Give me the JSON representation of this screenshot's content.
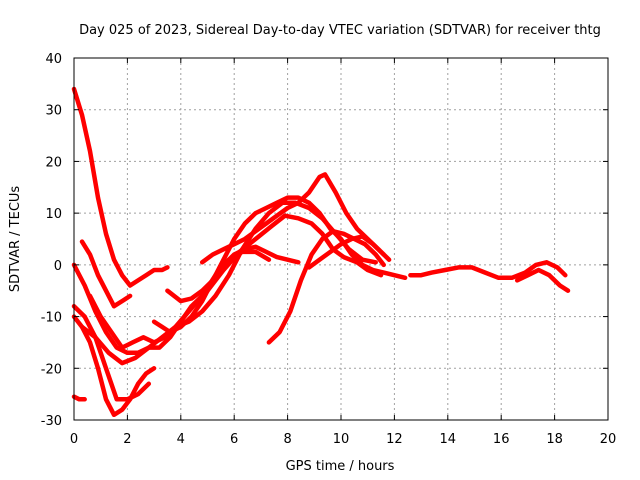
{
  "chart_data": {
    "type": "line",
    "title": "Day 025 of 2023, Sidereal Day-to-day VTEC variation (SDTVAR) for receiver thtg",
    "xlabel": "GPS time / hours",
    "ylabel": "SDTVAR / TECUs",
    "xlim": [
      0,
      20
    ],
    "ylim": [
      -30,
      40
    ],
    "xticks": [
      0,
      2,
      4,
      6,
      8,
      10,
      12,
      14,
      16,
      18,
      20
    ],
    "yticks": [
      -30,
      -20,
      -10,
      0,
      10,
      20,
      30,
      40
    ],
    "xtick_labels": [
      "0",
      "2",
      "4",
      "6",
      "8",
      "10",
      "12",
      "14",
      "16",
      "18",
      "20"
    ],
    "ytick_labels": [
      "-30",
      "-20",
      "-10",
      "0",
      "10",
      "20",
      "30",
      "40"
    ],
    "grid": true,
    "legend": "none",
    "color": "#ff0000",
    "series": [
      {
        "name": "track-1",
        "x": [
          0.0,
          0.3,
          0.6,
          0.9,
          1.2,
          1.5,
          1.8,
          2.1,
          2.4,
          2.7,
          3.0,
          3.3,
          3.5
        ],
        "y": [
          34,
          29,
          22,
          13,
          6,
          1,
          -2,
          -4,
          -3,
          -2,
          -1,
          -1,
          -0.5
        ]
      },
      {
        "name": "track-2",
        "x": [
          0.3,
          0.6,
          0.9,
          1.2,
          1.5,
          1.8,
          2.1
        ],
        "y": [
          4.5,
          2,
          -2,
          -5,
          -8,
          -7,
          -6
        ]
      },
      {
        "name": "track-3",
        "x": [
          0.0,
          0.4,
          0.8,
          1.2,
          1.6,
          2.0,
          2.4,
          2.8,
          3.2,
          3.6,
          4.0,
          4.4,
          5.0,
          5.6,
          6.2,
          6.8,
          7.4,
          7.9,
          8.4,
          8.9,
          9.3,
          9.7,
          10.1,
          10.6,
          11.0,
          11.5
        ],
        "y": [
          0,
          -4,
          -9,
          -13,
          -16,
          -17,
          -17,
          -16,
          -16,
          -14,
          -11,
          -8,
          -5,
          -1,
          2.5,
          5,
          7.5,
          9.5,
          9,
          8,
          6,
          3,
          1.5,
          0.5,
          -1,
          -2
        ]
      },
      {
        "name": "track-4",
        "x": [
          0.0,
          0.4,
          0.8,
          1.2,
          1.6,
          2.0,
          2.4,
          2.8
        ],
        "y": [
          -8,
          -10,
          -14,
          -20,
          -26,
          -26,
          -25,
          -23
        ]
      },
      {
        "name": "track-5",
        "x": [
          0.0,
          0.3,
          0.6,
          0.9,
          1.2,
          1.5,
          1.8,
          2.1,
          2.4,
          2.7,
          3.0
        ],
        "y": [
          -10,
          -12,
          -15,
          -20,
          -26,
          -29,
          -28,
          -26,
          -23,
          -21,
          -20
        ]
      },
      {
        "name": "track-6",
        "x": [
          0.6,
          1.0,
          1.4,
          1.8,
          2.2,
          2.6,
          3.0,
          3.4,
          3.8,
          4.3,
          4.8,
          5.3,
          5.8,
          6.3,
          6.8,
          7.3
        ],
        "y": [
          -6,
          -10,
          -13,
          -16,
          -15,
          -14,
          -15,
          -14,
          -12,
          -9,
          -6,
          -2,
          1,
          2.5,
          2.5,
          1
        ]
      },
      {
        "name": "track-7",
        "x": [
          0.3,
          0.8,
          1.3,
          1.8,
          2.3,
          2.8,
          3.3,
          3.8,
          4.3,
          4.8,
          5.3,
          5.8,
          6.3,
          6.8,
          7.3,
          7.8,
          8.3,
          8.8,
          9.3,
          9.8,
          10.3,
          10.8,
          11.3
        ],
        "y": [
          -12,
          -14,
          -17,
          -19,
          -18,
          -16,
          -14,
          -12,
          -11,
          -9,
          -6,
          -2,
          3,
          7,
          10,
          12,
          12,
          11,
          9,
          6,
          3,
          1,
          0.5
        ]
      },
      {
        "name": "track-8",
        "x": [
          3.0,
          3.3,
          3.6,
          4.0,
          4.4,
          4.8,
          5.2,
          5.6,
          6.0,
          6.4,
          6.8,
          7.2,
          7.6,
          8.0,
          8.4,
          8.8,
          9.2,
          9.6,
          10.0,
          10.4,
          10.8,
          11.2,
          11.6,
          12.0,
          12.4
        ],
        "y": [
          -11,
          -12,
          -13,
          -12,
          -10,
          -7,
          -3,
          1,
          5,
          8,
          10,
          11,
          12,
          13,
          13,
          12,
          10,
          7,
          5,
          2,
          0,
          -1,
          -1.5,
          -2,
          -2.5
        ]
      },
      {
        "name": "track-9",
        "x": [
          3.5,
          4.0,
          4.4,
          4.8,
          5.2,
          5.6,
          6.0,
          6.4,
          6.8,
          7.2,
          7.6,
          8.0,
          8.4
        ],
        "y": [
          -5,
          -7,
          -6.5,
          -5,
          -3,
          0,
          2,
          3,
          3.5,
          2.5,
          1.5,
          1,
          0.5
        ]
      },
      {
        "name": "track-10",
        "x": [
          4.8,
          5.2,
          5.6,
          6.0,
          6.4,
          6.8,
          7.2,
          7.6,
          8.0,
          8.4,
          8.8,
          9.2,
          9.4,
          9.8,
          10.2,
          10.6,
          11.0,
          11.4,
          11.8
        ],
        "y": [
          0.5,
          2,
          3,
          4,
          5,
          6.5,
          8,
          9.5,
          11,
          12,
          14,
          17,
          17.5,
          14,
          10,
          7,
          5,
          3,
          1
        ]
      },
      {
        "name": "track-11",
        "x": [
          7.3,
          7.7,
          8.1,
          8.5,
          8.9,
          9.3,
          9.7,
          10.1,
          10.5,
          10.9,
          11.3,
          11.6
        ],
        "y": [
          -15,
          -13,
          -9,
          -3,
          2,
          5,
          6.5,
          6,
          5,
          4,
          2,
          0
        ]
      },
      {
        "name": "track-12",
        "x": [
          8.8,
          9.2,
          9.6,
          10.0,
          10.4,
          10.8,
          11.2,
          11.6
        ],
        "y": [
          -0.5,
          1,
          2.5,
          4,
          5,
          5.5,
          4,
          2
        ]
      },
      {
        "name": "track-13",
        "x": [
          12.6,
          13.0,
          13.4,
          13.9,
          14.4,
          14.9,
          15.4,
          15.9,
          16.4,
          16.9,
          17.3,
          17.7,
          18.1,
          18.4
        ],
        "y": [
          -2,
          -2,
          -1.5,
          -1,
          -0.5,
          -0.5,
          -1.5,
          -2.5,
          -2.5,
          -1.5,
          0,
          0.5,
          -0.5,
          -2
        ]
      },
      {
        "name": "track-14",
        "x": [
          16.6,
          17.0,
          17.4,
          17.8,
          18.2,
          18.5
        ],
        "y": [
          -3,
          -2,
          -1,
          -2,
          -4,
          -5
        ]
      },
      {
        "name": "track-15",
        "x": [
          0.0,
          0.2,
          0.4
        ],
        "y": [
          -25.5,
          -26,
          -26
        ]
      }
    ]
  }
}
